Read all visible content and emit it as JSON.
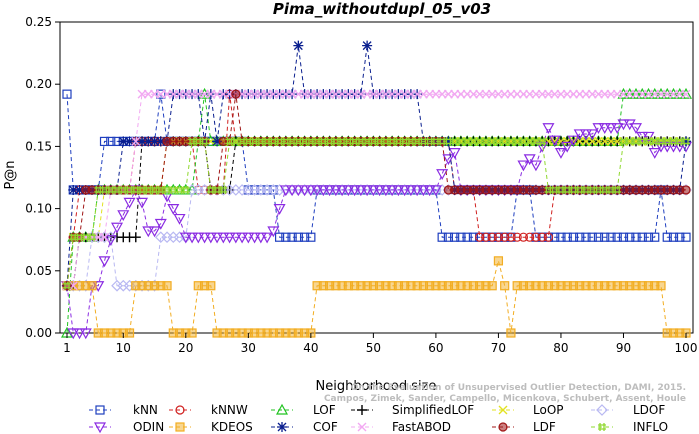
{
  "chart_data": {
    "type": "line",
    "title": "Pima_withoutdupl_05_v03",
    "xlabel": "Neighborhood size",
    "ylabel": "P@n",
    "xlim": [
      1,
      100
    ],
    "ylim": [
      0,
      0.25
    ],
    "x_ticks": [
      1,
      10,
      20,
      30,
      40,
      50,
      60,
      70,
      80,
      90,
      100
    ],
    "y_ticks": [
      0.0,
      0.05,
      0.1,
      0.15,
      0.2,
      0.25
    ],
    "y_tick_labels": [
      "0.00",
      "0.05",
      "0.10",
      "0.15",
      "0.20",
      "0.25"
    ],
    "grid": false,
    "legend_position": "bottom",
    "credit": [
      "Campos, Zimek, Sander, Campello, Micenkova, Schubert, Assent, Houle",
      "On the Evaluation of Unsupervised Outlier Detection, DAMI, 2015."
    ],
    "series": [
      {
        "name": "kNN",
        "color": "#1f3fbf",
        "marker": "square",
        "points": [
          [
            1,
            0.192
          ],
          [
            2,
            0.115
          ],
          [
            6,
            0.115
          ],
          [
            7,
            0.154
          ],
          [
            15,
            0.154
          ],
          [
            16,
            0.192
          ],
          [
            17,
            0.154
          ],
          [
            22,
            0.154
          ],
          [
            30,
            0.115
          ],
          [
            34,
            0.115
          ],
          [
            35,
            0.077
          ],
          [
            40,
            0.077
          ],
          [
            41,
            0.115
          ],
          [
            60,
            0.115
          ],
          [
            61,
            0.077
          ],
          [
            72,
            0.077
          ],
          [
            73,
            0.115
          ],
          [
            75,
            0.115
          ],
          [
            76,
            0.077
          ],
          [
            95,
            0.077
          ],
          [
            96,
            0.115
          ],
          [
            97,
            0.077
          ],
          [
            100,
            0.077
          ]
        ]
      },
      {
        "name": "kNNW",
        "color": "#d0201f",
        "marker": "circle",
        "points": [
          [
            1,
            0.038
          ],
          [
            2,
            0.077
          ],
          [
            3,
            0.115
          ],
          [
            11,
            0.115
          ],
          [
            12,
            0.154
          ],
          [
            21,
            0.154
          ],
          [
            22,
            0.115
          ],
          [
            26,
            0.115
          ],
          [
            27,
            0.192
          ],
          [
            28,
            0.154
          ],
          [
            62,
            0.154
          ],
          [
            63,
            0.115
          ],
          [
            66,
            0.115
          ],
          [
            67,
            0.077
          ],
          [
            78,
            0.077
          ],
          [
            79,
            0.115
          ],
          [
            100,
            0.115
          ]
        ]
      },
      {
        "name": "LOF",
        "color": "#22c322",
        "marker": "triangle",
        "points": [
          [
            1,
            0.0
          ],
          [
            2,
            0.077
          ],
          [
            5,
            0.077
          ],
          [
            6,
            0.115
          ],
          [
            21,
            0.115
          ],
          [
            22,
            0.154
          ],
          [
            23,
            0.192
          ],
          [
            24,
            0.154
          ],
          [
            89,
            0.154
          ],
          [
            90,
            0.192
          ],
          [
            100,
            0.192
          ]
        ]
      },
      {
        "name": "SimplifiedLOF",
        "color": "#000000",
        "marker": "plus",
        "points": [
          [
            1,
            0.038
          ],
          [
            2,
            0.038
          ],
          [
            3,
            0.077
          ],
          [
            12,
            0.077
          ],
          [
            13,
            0.154
          ],
          [
            23,
            0.154
          ],
          [
            24,
            0.115
          ],
          [
            27,
            0.115
          ],
          [
            28,
            0.154
          ],
          [
            100,
            0.154
          ]
        ]
      },
      {
        "name": "LoOP",
        "color": "#e2e222",
        "marker": "cross",
        "points": [
          [
            1,
            0.038
          ],
          [
            2,
            0.077
          ],
          [
            6,
            0.077
          ],
          [
            7,
            0.115
          ],
          [
            16,
            0.115
          ],
          [
            17,
            0.154
          ],
          [
            100,
            0.154
          ]
        ]
      },
      {
        "name": "LDOF",
        "color": "#b8b8f2",
        "marker": "diamond",
        "points": [
          [
            1,
            0.038
          ],
          [
            4,
            0.038
          ],
          [
            5,
            0.077
          ],
          [
            8,
            0.077
          ],
          [
            9,
            0.038
          ],
          [
            15,
            0.038
          ],
          [
            16,
            0.077
          ],
          [
            20,
            0.077
          ],
          [
            21,
            0.115
          ],
          [
            100,
            0.115
          ]
        ]
      },
      {
        "name": "ODIN",
        "color": "#8a2be2",
        "marker": "triangle-down",
        "points": [
          [
            1,
            0.038
          ],
          [
            2,
            0.0
          ],
          [
            4,
            0.0
          ],
          [
            5,
            0.038
          ],
          [
            6,
            0.038
          ],
          [
            7,
            0.058
          ],
          [
            8,
            0.075
          ],
          [
            9,
            0.085
          ],
          [
            10,
            0.095
          ],
          [
            11,
            0.105
          ],
          [
            12,
            0.115
          ],
          [
            13,
            0.105
          ],
          [
            14,
            0.082
          ],
          [
            15,
            0.082
          ],
          [
            16,
            0.088
          ],
          [
            17,
            0.11
          ],
          [
            18,
            0.1
          ],
          [
            19,
            0.092
          ],
          [
            20,
            0.077
          ],
          [
            33,
            0.077
          ],
          [
            34,
            0.082
          ],
          [
            35,
            0.1
          ],
          [
            36,
            0.115
          ],
          [
            60,
            0.115
          ],
          [
            61,
            0.128
          ],
          [
            62,
            0.14
          ],
          [
            63,
            0.145
          ],
          [
            64,
            0.115
          ],
          [
            73,
            0.115
          ],
          [
            74,
            0.135
          ],
          [
            75,
            0.14
          ],
          [
            76,
            0.135
          ],
          [
            77,
            0.15
          ],
          [
            78,
            0.165
          ],
          [
            79,
            0.155
          ],
          [
            80,
            0.145
          ],
          [
            81,
            0.15
          ],
          [
            82,
            0.155
          ],
          [
            83,
            0.16
          ],
          [
            86,
            0.165
          ],
          [
            90,
            0.168
          ],
          [
            92,
            0.165
          ],
          [
            93,
            0.158
          ],
          [
            95,
            0.145
          ],
          [
            96,
            0.15
          ],
          [
            100,
            0.15
          ]
        ]
      },
      {
        "name": "KDEOS",
        "color": "#f2ad22",
        "marker": "square-filled",
        "points": [
          [
            1,
            0.038
          ],
          [
            5,
            0.038
          ],
          [
            6,
            0.0
          ],
          [
            11,
            0.0
          ],
          [
            12,
            0.038
          ],
          [
            17,
            0.038
          ],
          [
            18,
            0.0
          ],
          [
            21,
            0.0
          ],
          [
            22,
            0.038
          ],
          [
            24,
            0.038
          ],
          [
            25,
            0.0
          ],
          [
            40,
            0.0
          ],
          [
            41,
            0.038
          ],
          [
            69,
            0.038
          ],
          [
            70,
            0.058
          ],
          [
            71,
            0.038
          ],
          [
            72,
            0.0
          ],
          [
            73,
            0.038
          ],
          [
            96,
            0.038
          ],
          [
            97,
            0.0
          ],
          [
            100,
            0.0
          ]
        ]
      },
      {
        "name": "COF",
        "color": "#0a1f8f",
        "marker": "star",
        "points": [
          [
            1,
            0.038
          ],
          [
            2,
            0.115
          ],
          [
            9,
            0.115
          ],
          [
            10,
            0.154
          ],
          [
            17,
            0.154
          ],
          [
            18,
            0.192
          ],
          [
            22,
            0.192
          ],
          [
            23,
            0.154
          ],
          [
            24,
            0.192
          ],
          [
            25,
            0.154
          ],
          [
            26,
            0.192
          ],
          [
            37,
            0.192
          ],
          [
            38,
            0.231
          ],
          [
            39,
            0.192
          ],
          [
            48,
            0.192
          ],
          [
            49,
            0.231
          ],
          [
            50,
            0.192
          ],
          [
            57,
            0.192
          ],
          [
            58,
            0.154
          ],
          [
            62,
            0.154
          ],
          [
            63,
            0.115
          ],
          [
            99,
            0.115
          ],
          [
            100,
            0.154
          ]
        ]
      },
      {
        "name": "FastABOD",
        "color": "#f2a8f2",
        "marker": "cross",
        "points": [
          [
            1,
            0.038
          ],
          [
            3,
            0.077
          ],
          [
            8,
            0.115
          ],
          [
            12,
            0.154
          ],
          [
            13,
            0.192
          ],
          [
            100,
            0.192
          ]
        ]
      },
      {
        "name": "LDF",
        "color": "#a01717",
        "marker": "circle-dot",
        "points": [
          [
            1,
            0.038
          ],
          [
            2,
            0.077
          ],
          [
            4,
            0.115
          ],
          [
            16,
            0.115
          ],
          [
            17,
            0.154
          ],
          [
            23,
            0.154
          ],
          [
            24,
            0.115
          ],
          [
            25,
            0.115
          ],
          [
            26,
            0.154
          ],
          [
            27,
            0.154
          ],
          [
            28,
            0.192
          ],
          [
            29,
            0.154
          ],
          [
            61,
            0.154
          ],
          [
            62,
            0.115
          ],
          [
            100,
            0.115
          ]
        ]
      },
      {
        "name": "INFLO",
        "color": "#8fd82f",
        "marker": "hash",
        "points": [
          [
            1,
            0.038
          ],
          [
            2,
            0.077
          ],
          [
            5,
            0.077
          ],
          [
            6,
            0.115
          ],
          [
            20,
            0.115
          ],
          [
            21,
            0.154
          ],
          [
            23,
            0.154
          ],
          [
            24,
            0.115
          ],
          [
            26,
            0.115
          ],
          [
            27,
            0.154
          ],
          [
            77,
            0.154
          ],
          [
            78,
            0.115
          ],
          [
            89,
            0.115
          ],
          [
            90,
            0.154
          ],
          [
            100,
            0.154
          ]
        ]
      }
    ]
  }
}
